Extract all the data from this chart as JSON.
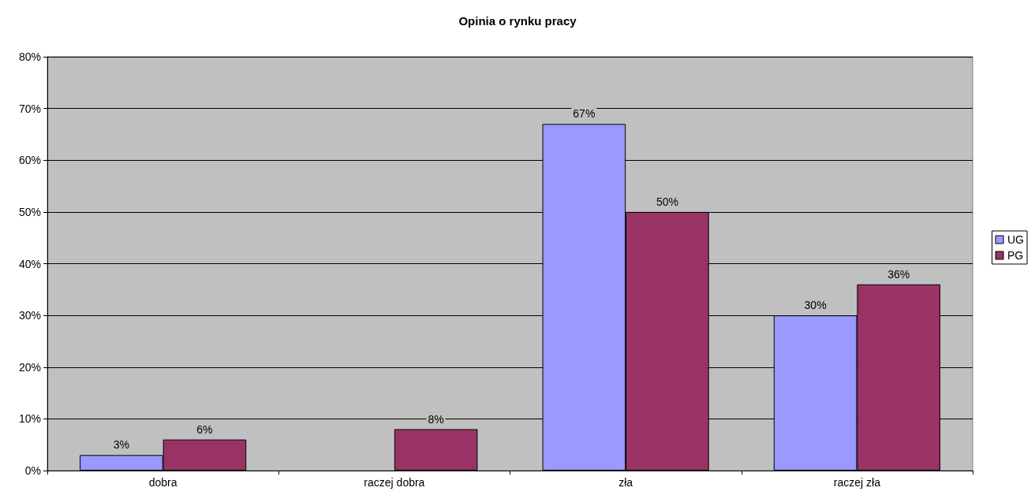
{
  "chart_data": {
    "type": "bar",
    "title": "Opinia o rynku pracy",
    "categories": [
      "dobra",
      "raczej dobra",
      "zła",
      "raczej zła"
    ],
    "series": [
      {
        "name": "UG",
        "color": "#9999ff",
        "values": [
          3,
          null,
          67,
          30
        ],
        "value_labels": [
          "3%",
          null,
          "67%",
          "30%"
        ]
      },
      {
        "name": "PG",
        "color": "#993366",
        "values": [
          6,
          8,
          50,
          36
        ],
        "value_labels": [
          "6%",
          "8%",
          "50%",
          "36%"
        ]
      }
    ],
    "ylim": [
      0,
      80
    ],
    "yticks": [
      {
        "value": 0,
        "label": "0%"
      },
      {
        "value": 10,
        "label": "10%"
      },
      {
        "value": 20,
        "label": "20%"
      },
      {
        "value": 30,
        "label": "30%"
      },
      {
        "value": 40,
        "label": "40%"
      },
      {
        "value": 50,
        "label": "50%"
      },
      {
        "value": 60,
        "label": "60%"
      },
      {
        "value": 70,
        "label": "70%"
      },
      {
        "value": 80,
        "label": "80%"
      }
    ],
    "grid": "y",
    "legend": "right"
  }
}
